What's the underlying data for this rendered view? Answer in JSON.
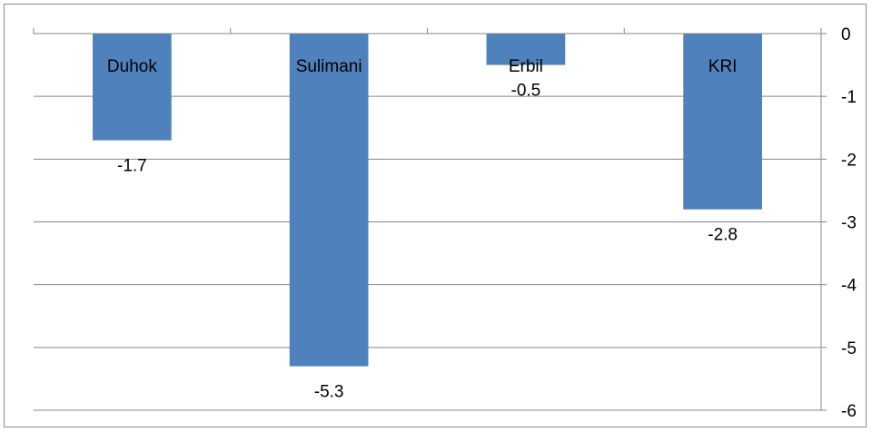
{
  "chart_data": {
    "type": "bar",
    "categories": [
      "Duhok",
      "Sulimani",
      "Erbil",
      "KRI"
    ],
    "values": [
      -1.7,
      -5.3,
      -0.5,
      -2.8
    ],
    "data_labels": [
      "-1.7",
      "-5.3",
      "-0.5",
      "-2.8"
    ],
    "title": "",
    "xlabel": "",
    "ylabel": "",
    "ylim": [
      -6,
      0
    ],
    "yticks": [
      0,
      -1,
      -2,
      -3,
      -4,
      -5,
      -6
    ],
    "ytick_labels": [
      "0",
      "-1",
      "-2",
      "-3",
      "-4",
      "-5",
      "-6"
    ],
    "y_axis_position": "right",
    "category_axis_position": "top",
    "grid": true,
    "legend": "none",
    "bar_color": "#4f81bd",
    "grid_color": "#868686"
  }
}
